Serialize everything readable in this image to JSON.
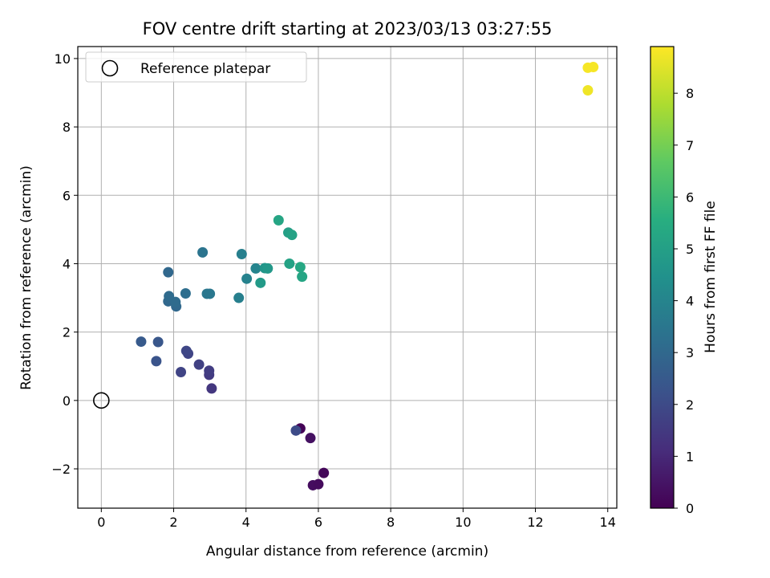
{
  "chart_data": {
    "type": "scatter",
    "title": "FOV centre drift starting at 2023/03/13 03:27:55",
    "xlabel": "Angular distance from reference (arcmin)",
    "ylabel": "Rotation from reference (arcmin)",
    "xlim": [
      -0.65,
      14.25
    ],
    "ylim": [
      -3.15,
      10.35
    ],
    "xticks": [
      "0",
      "2",
      "4",
      "6",
      "8",
      "10",
      "12",
      "14"
    ],
    "yticks": [
      "−2",
      "0",
      "2",
      "4",
      "6",
      "8",
      "10"
    ],
    "grid": true,
    "legend": {
      "label": "Reference platepar",
      "position": "top-left"
    },
    "reference_point": {
      "x": 0,
      "y": 0
    },
    "colorbar": {
      "label": "Hours from first FF file",
      "range": [
        0,
        8.9
      ],
      "ticks": [
        "0",
        "1",
        "2",
        "3",
        "4",
        "5",
        "6",
        "7",
        "8"
      ],
      "colormap": "viridis"
    },
    "points": [
      {
        "x": 5.5,
        "y": -0.82,
        "c": 0.05
      },
      {
        "x": 5.78,
        "y": -1.1,
        "c": 0.4
      },
      {
        "x": 6.15,
        "y": -2.12,
        "c": 0.15
      },
      {
        "x": 5.85,
        "y": -2.48,
        "c": 0.3
      },
      {
        "x": 6.0,
        "y": -2.45,
        "c": 0.25
      },
      {
        "x": 5.38,
        "y": -0.88,
        "c": 2.0
      },
      {
        "x": 3.05,
        "y": 0.35,
        "c": 1.4
      },
      {
        "x": 2.98,
        "y": 0.75,
        "c": 1.5
      },
      {
        "x": 2.98,
        "y": 0.87,
        "c": 1.6
      },
      {
        "x": 2.7,
        "y": 1.05,
        "c": 1.7
      },
      {
        "x": 2.2,
        "y": 0.83,
        "c": 1.8
      },
      {
        "x": 2.4,
        "y": 1.37,
        "c": 1.8
      },
      {
        "x": 2.35,
        "y": 1.45,
        "c": 1.9
      },
      {
        "x": 1.52,
        "y": 1.15,
        "c": 2.3
      },
      {
        "x": 1.1,
        "y": 1.72,
        "c": 2.5
      },
      {
        "x": 1.57,
        "y": 1.71,
        "c": 2.4
      },
      {
        "x": 1.85,
        "y": 2.9,
        "c": 3.0
      },
      {
        "x": 2.07,
        "y": 2.75,
        "c": 3.0
      },
      {
        "x": 2.05,
        "y": 2.88,
        "c": 3.1
      },
      {
        "x": 1.87,
        "y": 3.05,
        "c": 3.1
      },
      {
        "x": 2.33,
        "y": 3.13,
        "c": 3.2
      },
      {
        "x": 1.85,
        "y": 3.75,
        "c": 3.0
      },
      {
        "x": 2.8,
        "y": 4.33,
        "c": 3.4
      },
      {
        "x": 2.92,
        "y": 3.12,
        "c": 3.5
      },
      {
        "x": 3.0,
        "y": 3.12,
        "c": 3.5
      },
      {
        "x": 3.8,
        "y": 3.0,
        "c": 3.8
      },
      {
        "x": 3.88,
        "y": 4.28,
        "c": 3.8
      },
      {
        "x": 4.02,
        "y": 3.56,
        "c": 3.9
      },
      {
        "x": 4.27,
        "y": 3.86,
        "c": 4.0
      },
      {
        "x": 4.4,
        "y": 3.44,
        "c": 4.8
      },
      {
        "x": 4.52,
        "y": 3.87,
        "c": 4.6
      },
      {
        "x": 4.6,
        "y": 3.86,
        "c": 4.7
      },
      {
        "x": 4.9,
        "y": 5.27,
        "c": 5.2
      },
      {
        "x": 5.17,
        "y": 4.91,
        "c": 5.0
      },
      {
        "x": 5.27,
        "y": 4.84,
        "c": 5.1
      },
      {
        "x": 5.2,
        "y": 4.0,
        "c": 5.1
      },
      {
        "x": 5.5,
        "y": 3.9,
        "c": 5.3
      },
      {
        "x": 5.55,
        "y": 3.62,
        "c": 5.2
      },
      {
        "x": 13.45,
        "y": 9.73,
        "c": 8.8
      },
      {
        "x": 13.6,
        "y": 9.75,
        "c": 8.8
      },
      {
        "x": 13.45,
        "y": 9.07,
        "c": 8.7
      }
    ]
  }
}
